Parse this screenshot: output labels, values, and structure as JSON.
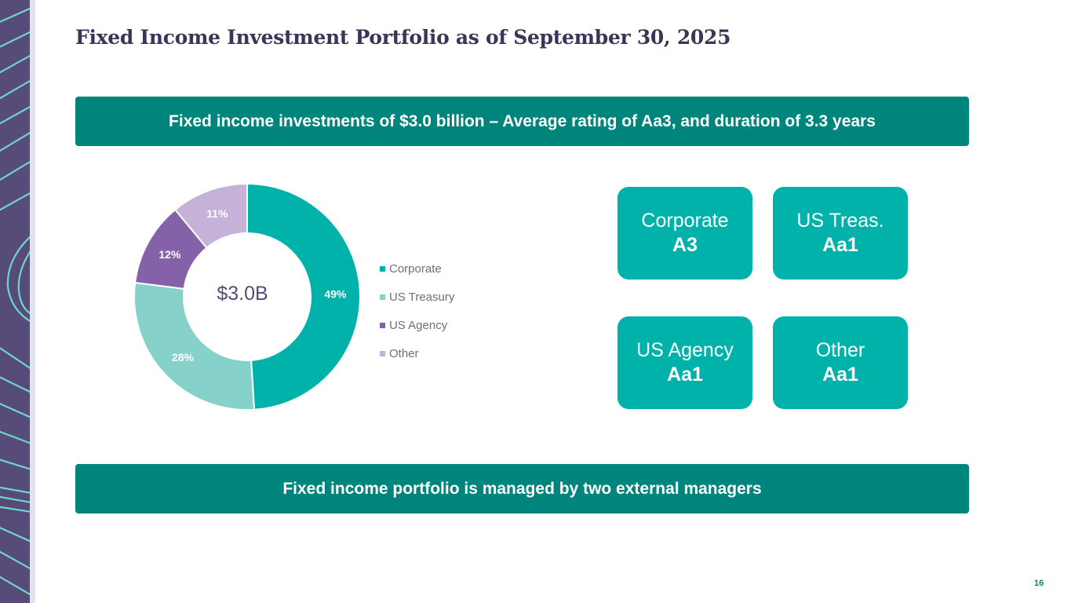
{
  "page": {
    "title": "Fixed Income Investment Portfolio as of September 30, 2025",
    "page_number": "16"
  },
  "banners": {
    "top": "Fixed income investments of $3.0 billion – Average rating of Aa3, and duration of 3.3 years",
    "bottom": "Fixed income portfolio is managed by two external managers"
  },
  "chart_data": {
    "type": "pie",
    "variant": "donut",
    "center_label": "$3.0B",
    "categories": [
      "Corporate",
      "US Treasury",
      "US Agency",
      "Other"
    ],
    "values": [
      49,
      28,
      12,
      11
    ],
    "value_labels": [
      "49%",
      "28%",
      "12%",
      "11%"
    ],
    "colors": [
      "#00b2a9",
      "#86d2ca",
      "#8561a9",
      "#c6b2d8"
    ],
    "legend_position": "right"
  },
  "ratings": [
    {
      "label": "Corporate",
      "rating": "A3"
    },
    {
      "label": "US Treas.",
      "rating": "Aa1"
    },
    {
      "label": "US Agency",
      "rating": "Aa1"
    },
    {
      "label": "Other",
      "rating": "Aa1"
    }
  ],
  "colors": {
    "accent_dark": "#00857c",
    "accent": "#00b2a9",
    "brand_purple": "#574b7a",
    "deco_line": "#6fd6c8"
  }
}
